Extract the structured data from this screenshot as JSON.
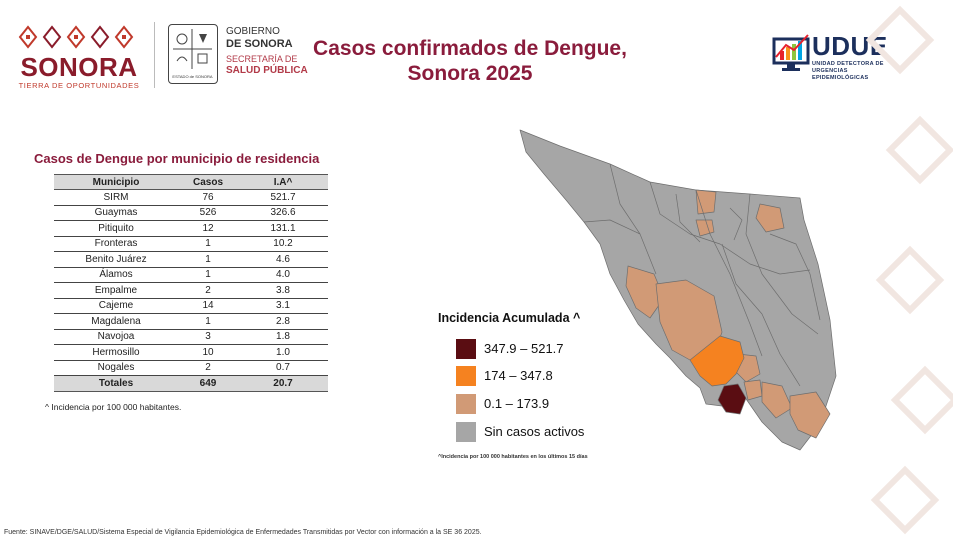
{
  "header": {
    "logo_word": "SONORA",
    "logo_tagline": "TIERRA DE OPORTUNIDADES",
    "gov_line1": "GOBIERNO",
    "gov_line2": "DE SONORA",
    "gov_line3": "SECRETARÍA DE",
    "gov_line4": "SALUD PÚBLICA",
    "crest_caption": "ESTADO de SONORA",
    "title_line1": "Casos confirmados de Dengue,",
    "title_line2": "Sonora 2025",
    "udue_word": "UDUE",
    "udue_sub1": "UNIDAD DETECTORA DE",
    "udue_sub2": "URGENCIAS EPIDEMIOLÓGICAS"
  },
  "table": {
    "title": "Casos de Dengue por municipio de residencia",
    "headers": [
      "Municipio",
      "Casos",
      "I.A^"
    ],
    "rows": [
      [
        "SIRM",
        "76",
        "521.7"
      ],
      [
        "Guaymas",
        "526",
        "326.6"
      ],
      [
        "Pitiquito",
        "12",
        "131.1"
      ],
      [
        "Fronteras",
        "1",
        "10.2"
      ],
      [
        "Benito Juárez",
        "1",
        "4.6"
      ],
      [
        "Álamos",
        "1",
        "4.0"
      ],
      [
        "Empalme",
        "2",
        "3.8"
      ],
      [
        "Cajeme",
        "14",
        "3.1"
      ],
      [
        "Magdalena",
        "1",
        "2.8"
      ],
      [
        "Navojoa",
        "3",
        "1.8"
      ],
      [
        "Hermosillo",
        "10",
        "1.0"
      ],
      [
        "Nogales",
        "2",
        "0.7"
      ]
    ],
    "totals": [
      "Totales",
      "649",
      "20.7"
    ],
    "footnote": "^ Incidencia por 100 000 habitantes."
  },
  "legend": {
    "title": "Incidencia Acumulada ^",
    "items": [
      {
        "label": "347.9 – 521.7",
        "color": "#5a0d12"
      },
      {
        "label": "174 – 347.8",
        "color": "#f58220"
      },
      {
        "label": "0.1 – 173.9",
        "color": "#d19a76"
      },
      {
        "label": "Sin casos activos",
        "color": "#a6a6a6"
      }
    ],
    "note": "^Incidencia por 100 000 habitantes en los últimos 15 días"
  },
  "colors": {
    "brand": "#8a1c3c",
    "map_gray": "#a6a6a6",
    "map_light": "#d19a76",
    "map_orange": "#f58220",
    "map_dark": "#5a0d12"
  },
  "source": "Fuente: SINAVE/DGE/SALUD/Sistema Especial de Vigilancia Epidemiológica de Enfermedades Transmitidas por Vector con información a la SE 36 2025."
}
